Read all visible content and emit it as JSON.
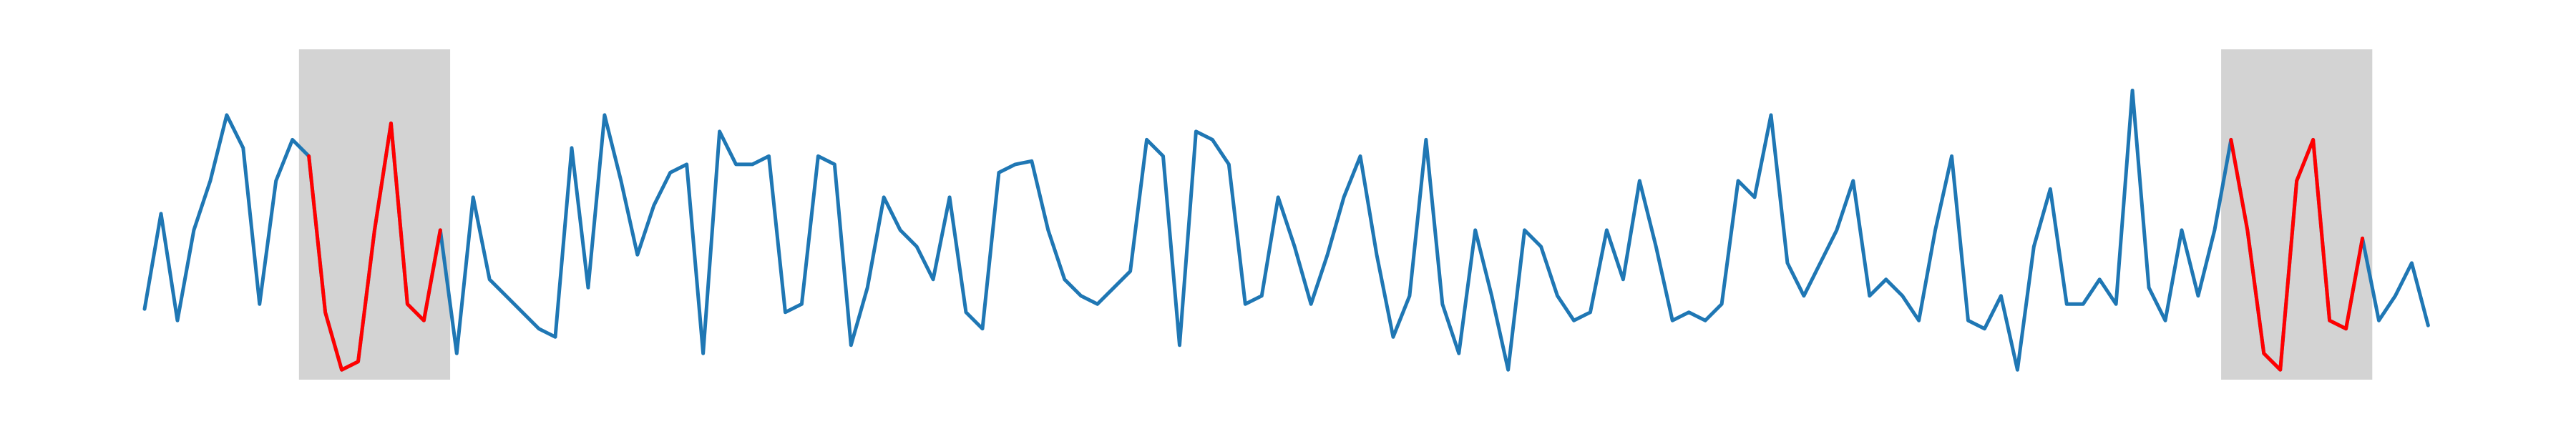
{
  "chart_data": {
    "type": "line",
    "x": [
      0,
      1,
      2,
      3,
      4,
      5,
      6,
      7,
      8,
      9,
      10,
      11,
      12,
      13,
      14,
      15,
      16,
      17,
      18,
      19,
      20,
      21,
      22,
      23,
      24,
      25,
      26,
      27,
      28,
      29,
      30,
      31,
      32,
      33,
      34,
      35,
      36,
      37,
      38,
      39,
      40,
      41,
      42,
      43,
      44,
      45,
      46,
      47,
      48,
      49,
      50,
      51,
      52,
      53,
      54,
      55,
      56,
      57,
      58,
      59,
      60,
      61,
      62,
      63,
      64,
      65,
      66,
      67,
      68,
      69,
      70,
      71,
      72,
      73,
      74,
      75,
      76,
      77,
      78,
      79,
      80,
      81,
      82,
      83,
      84,
      85,
      86,
      87,
      88,
      89,
      90,
      91,
      92,
      93,
      94,
      95,
      96,
      97,
      98,
      99,
      100,
      101,
      102,
      103,
      104,
      105,
      106,
      107,
      108,
      109,
      110,
      111,
      112,
      113,
      114,
      115,
      116,
      117,
      118,
      119,
      120,
      121,
      122,
      123,
      124,
      125,
      126,
      127,
      128,
      129,
      130,
      131,
      132,
      133,
      134,
      135,
      136,
      137,
      138,
      139
    ],
    "series": [
      {
        "color": "#1f77b4",
        "values": [
          52,
          110,
          45,
          100,
          130,
          170,
          150,
          55,
          130,
          155,
          145,
          50,
          15,
          20,
          100,
          165,
          55,
          45,
          100,
          25,
          120,
          70,
          60,
          50,
          40,
          35,
          150,
          65,
          170,
          130,
          85,
          115,
          135,
          140,
          25,
          160,
          140,
          140,
          145,
          50,
          55,
          145,
          140,
          30,
          65,
          120,
          100,
          90,
          70,
          120,
          50,
          40,
          135,
          140,
          142,
          100,
          70,
          60,
          55,
          65,
          75,
          155,
          145,
          30,
          160,
          155,
          140,
          55,
          60,
          120,
          90,
          55,
          85,
          120,
          145,
          85,
          35,
          60,
          155,
          55,
          25,
          100,
          60,
          15,
          100,
          90,
          60,
          45,
          50,
          100,
          70,
          130,
          90,
          45,
          50,
          45,
          55,
          130,
          120,
          170,
          80,
          60,
          80,
          100,
          130,
          60,
          70,
          60,
          45,
          100,
          145,
          45,
          40,
          60,
          15,
          90,
          125,
          55,
          55,
          70,
          55,
          185,
          65,
          45,
          100,
          60,
          100,
          155,
          100,
          25,
          15,
          130,
          155,
          45,
          40,
          95,
          45,
          60,
          80,
          42
        ]
      },
      {
        "color": "#ff0000",
        "values": [
          null,
          null,
          null,
          null,
          null,
          null,
          null,
          null,
          null,
          null,
          145,
          50,
          15,
          20,
          100,
          165,
          55,
          45,
          100,
          null,
          null,
          null,
          null,
          null,
          null,
          null,
          null,
          null,
          null,
          null,
          null,
          null,
          null,
          null,
          null,
          null,
          null,
          null,
          null,
          null,
          null,
          null,
          null,
          null,
          null,
          null,
          null,
          null,
          null,
          null,
          null,
          null,
          null,
          null,
          null,
          null,
          null,
          null,
          null,
          null,
          null,
          null,
          null,
          null,
          null,
          null,
          null,
          null,
          null,
          null,
          null,
          null,
          null,
          null,
          null,
          null,
          null,
          null,
          null,
          null,
          null,
          null,
          null,
          null,
          null,
          null,
          null,
          null,
          null,
          null,
          null,
          null,
          null,
          null,
          null,
          null,
          null,
          null,
          null,
          null,
          null,
          null,
          null,
          null,
          null,
          null,
          null,
          null,
          null,
          null,
          null,
          null,
          null,
          null,
          null,
          null,
          null,
          null,
          null,
          null,
          null,
          null,
          null,
          null,
          null,
          null,
          null,
          155,
          100,
          25,
          15,
          130,
          155,
          45,
          40,
          95,
          null,
          null,
          null,
          null
        ]
      }
    ],
    "highlights": [
      {
        "x": [
          9.4,
          18.6
        ],
        "y": [
          9,
          210
        ]
      },
      {
        "x": [
          126.4,
          135.6
        ],
        "y": [
          9,
          210
        ]
      }
    ],
    "highlight_color": "#d3d3d3",
    "xlim": [
      -8.8,
      148
    ],
    "ylim": [
      -21,
      240
    ],
    "grid": false
  }
}
